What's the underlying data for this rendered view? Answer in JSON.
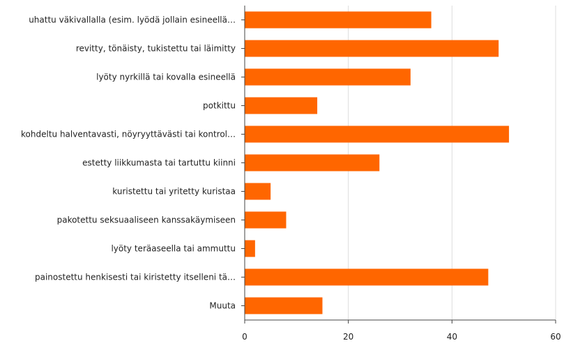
{
  "chart_data": {
    "type": "bar",
    "orientation": "horizontal",
    "title": "",
    "xlabel": "",
    "ylabel": "",
    "categories": [
      "uhattu väkivallalla (esim. lyödä jollain esineellä…",
      "revitty, tönäisty, tukistettu tai läimitty",
      "lyöty nyrkillä tai kovalla esineellä",
      "potkittu",
      "kohdeltu halventavasti, nöyryyttävästi tai kontrol…",
      "estetty liikkumasta tai tartuttu kiinni",
      "kuristettu tai yritetty kuristaa",
      "pakotettu seksuaaliseen kanssakäymiseen",
      "lyöty teräaseella tai ammuttu",
      "painostettu henkisesti tai kiristetty itselleni tä…",
      "Muuta"
    ],
    "values": [
      36,
      49,
      32,
      14,
      51,
      26,
      5,
      8,
      2,
      47,
      15
    ],
    "xlim": [
      0,
      60
    ],
    "xticks": [
      0,
      20,
      40,
      60
    ],
    "grid": true,
    "legend": "none",
    "bar_color": "#ff6600",
    "grid_color": "#dddddd",
    "axis_color": "#444444"
  }
}
